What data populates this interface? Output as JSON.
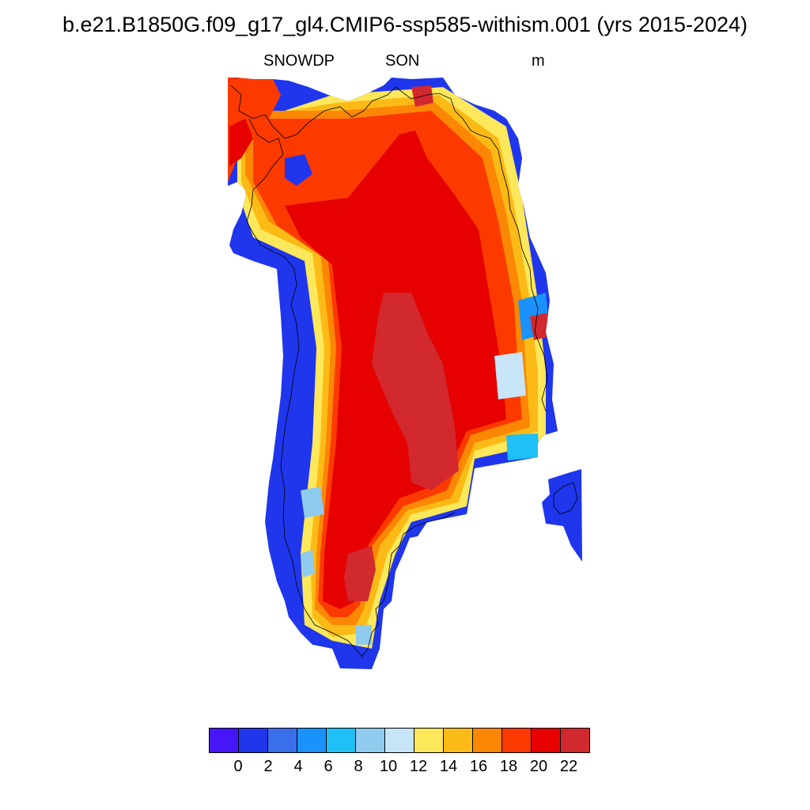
{
  "title": "b.e21.B1850G.f09_g17_gl4.CMIP6-ssp585-withism.001 (yrs 2015-2024)",
  "subtitle": {
    "left": "SNOWDP",
    "center": "SON",
    "right": "m"
  },
  "colorbar": {
    "colors": [
      "#4616f8",
      "#1f36ec",
      "#3a6fec",
      "#1b92fb",
      "#1ec0f6",
      "#8ecbee",
      "#c7e5f7",
      "#fde75a",
      "#fcba16",
      "#fc8704",
      "#fc3a00",
      "#e60000",
      "#d1292d"
    ],
    "labels": [
      "0",
      "2",
      "4",
      "6",
      "8",
      "10",
      "12",
      "14",
      "16",
      "18",
      "20",
      "22"
    ]
  },
  "map": {
    "region": "Greenland",
    "variable": "SNOWDP",
    "units": "m",
    "pattern": "interior values 20-24 (deep red), coastal margins 0-4 (blue), transition zone 12-18"
  }
}
